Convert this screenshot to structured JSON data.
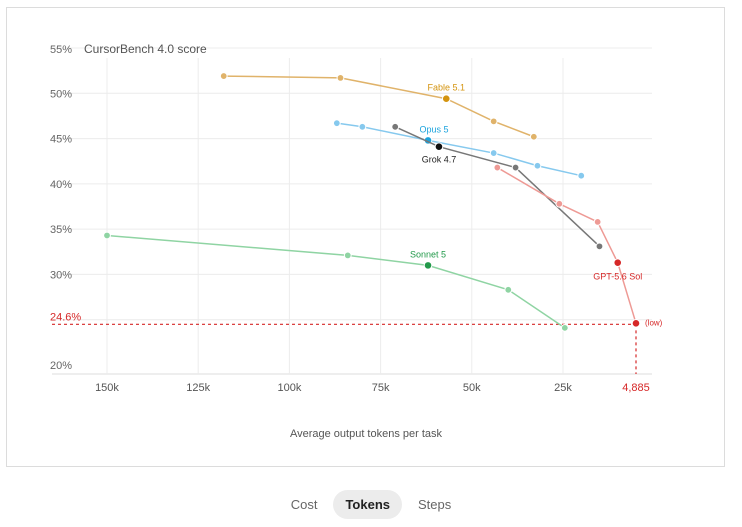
{
  "chart_data": {
    "type": "line",
    "title": "CursorBench 4.0 score",
    "xlabel": "Average output tokens per task",
    "ylabel": "",
    "x_reversed": true,
    "xlim": [
      0,
      160000
    ],
    "ylim": [
      20,
      55
    ],
    "x_ticks": [
      150000,
      125000,
      100000,
      75000,
      50000,
      25000
    ],
    "x_tick_labels": [
      "150k",
      "125k",
      "100k",
      "75k",
      "50k",
      "25k"
    ],
    "y_ticks": [
      20,
      25,
      30,
      35,
      40,
      45,
      50,
      55
    ],
    "y_tick_labels": [
      "20%",
      "25%",
      "30%",
      "35%",
      "40%",
      "45%",
      "50%",
      "55%"
    ],
    "grid": true,
    "highlight": {
      "x": 4885,
      "y": 24.6,
      "x_label": "4,885",
      "y_label": "24.6%",
      "point_label": "(low)",
      "color": "#d62828"
    },
    "series": [
      {
        "name": "Fable 5.1",
        "color": "#e0b36a",
        "accent": "#d4940f",
        "x": [
          118000,
          86000,
          57000,
          44000,
          33000
        ],
        "y": [
          51.9,
          51.7,
          49.4,
          46.9,
          45.2
        ],
        "highlight_index": 2
      },
      {
        "name": "Opus 5",
        "color": "#86c9ee",
        "accent": "#1ba3dd",
        "x": [
          87000,
          80000,
          62000,
          44000,
          32000,
          20000
        ],
        "y": [
          46.7,
          46.3,
          44.8,
          43.4,
          42.0,
          40.9
        ],
        "highlight_index": 2
      },
      {
        "name": "Grok 4.7",
        "color": "#777777",
        "accent": "#111111",
        "x": [
          71000,
          59000,
          38000,
          15000
        ],
        "y": [
          46.3,
          44.1,
          41.8,
          33.1
        ],
        "highlight_index": 1
      },
      {
        "name": "GPT-5.6 Sol",
        "color": "#ee9a95",
        "accent": "#d62828",
        "x": [
          43000,
          26000,
          15500,
          10000,
          4885
        ],
        "y": [
          41.8,
          37.8,
          35.8,
          31.3,
          24.6
        ],
        "highlight_index": 3
      },
      {
        "name": "Sonnet 5",
        "color": "#8fd4a3",
        "accent": "#22994a",
        "x": [
          150000,
          84000,
          62000,
          40000,
          24500
        ],
        "y": [
          34.3,
          32.1,
          31.0,
          28.3,
          24.1
        ],
        "highlight_index": 2
      }
    ]
  },
  "tabs": [
    {
      "label": "Cost",
      "active": false
    },
    {
      "label": "Tokens",
      "active": true
    },
    {
      "label": "Steps",
      "active": false
    }
  ]
}
